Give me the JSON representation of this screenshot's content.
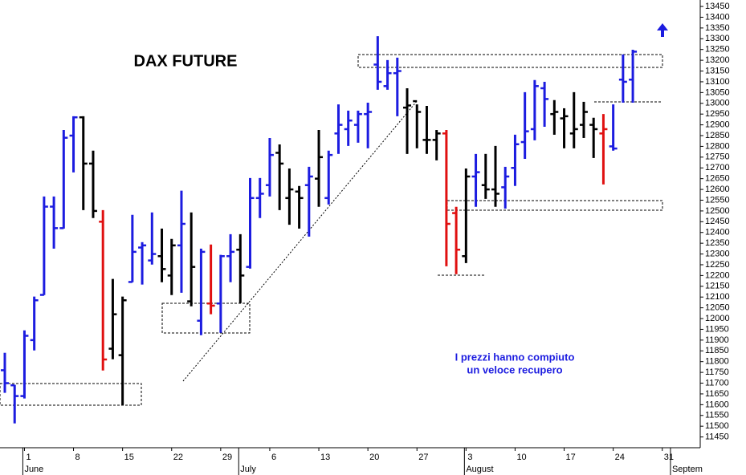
{
  "chart_data": {
    "type": "ohlc",
    "title": "DAX FUTURE",
    "annotation": [
      "I prezzi hanno compiuto",
      "un veloce recupero"
    ],
    "categories": [
      null,
      null,
      "1",
      null,
      null,
      null,
      null,
      "8",
      null,
      null,
      null,
      null,
      "15",
      null,
      null,
      null,
      null,
      "22",
      null,
      null,
      null,
      null,
      "29",
      null,
      null,
      null,
      null,
      "6",
      null,
      null,
      null,
      null,
      "13",
      null,
      null,
      null,
      null,
      "20",
      null,
      null,
      null,
      null,
      "27",
      null,
      null,
      null,
      null,
      "3",
      null,
      null,
      null,
      null,
      "10",
      null,
      null,
      null,
      null,
      "17",
      null,
      null,
      null,
      null,
      "24",
      null,
      null,
      null,
      null,
      "31",
      null,
      null,
      null
    ],
    "months": [
      "June",
      "July",
      "August",
      "Septem"
    ],
    "month_starts": [
      2,
      24,
      47,
      68
    ],
    "open": [
      11760,
      11690,
      11640,
      11900,
      12110,
      12520,
      12420,
      12850,
      12935,
      12720,
      12450,
      11860,
      11830,
      12170,
      12330,
      12270,
      12290,
      12200,
      12340,
      12080,
      11990,
      12070,
      12070,
      12290,
      12320,
      12240,
      12560,
      12620,
      12770,
      12560,
      12590,
      12620,
      12650,
      12560,
      12860,
      12880,
      12900,
      12950,
      13180,
      13080,
      13140,
      12980,
      13010,
      12830,
      12830,
      12860,
      12490,
      12290,
      12660,
      12620,
      12600,
      12610,
      12700,
      12820,
      12880,
      13070,
      12950,
      12930,
      12860,
      12900,
      12900,
      12860,
      12800,
      13110,
      13110,
      null,
      null,
      null,
      null,
      null,
      null
    ],
    "high": [
      11841,
      11692,
      11945,
      12102,
      12567,
      12567,
      12876,
      12940,
      12940,
      12780,
      12504,
      12184,
      12102,
      12482,
      12355,
      12493,
      12418,
      12370,
      12594,
      12493,
      12325,
      12344,
      12296,
      12392,
      12392,
      12653,
      12653,
      12839,
      12809,
      12697,
      12616,
      12705,
      12876,
      12780,
      12995,
      12966,
      12966,
      13003,
      13312,
      13201,
      13212,
      13070,
      12995,
      12988,
      12876,
      12876,
      12519,
      12697,
      12765,
      12765,
      12802,
      12705,
      12854,
      13052,
      13108,
      13100,
      13015,
      12977,
      13052,
      13007,
      12933,
      12950,
      12995,
      13227,
      13249,
      null,
      null,
      null,
      null,
      null,
      null
    ],
    "low": [
      11655,
      11513,
      11629,
      11852,
      12109,
      12325,
      12418,
      12679,
      12504,
      12467,
      11759,
      11811,
      11599,
      12169,
      12158,
      12251,
      12169,
      12109,
      12120,
      12057,
      11923,
      12020,
      11934,
      12169,
      12072,
      12232,
      12467,
      12567,
      12504,
      12436,
      12418,
      12381,
      12519,
      12530,
      12765,
      12802,
      12817,
      12791,
      13063,
      13063,
      12940,
      12765,
      12791,
      12765,
      12735,
      12243,
      12206,
      12258,
      12519,
      12556,
      12519,
      12511,
      12616,
      12742,
      12828,
      12891,
      12854,
      12791,
      12791,
      12839,
      12746,
      12623,
      12780,
      13003,
      13003,
      null,
      null,
      null,
      null,
      null,
      null
    ],
    "close": [
      11700,
      11640,
      11920,
      12085,
      12520,
      12420,
      12840,
      12935,
      12720,
      12500,
      11810,
      12020,
      12085,
      12310,
      12340,
      12300,
      12230,
      12340,
      12440,
      12240,
      12310,
      12060,
      12290,
      12310,
      12200,
      12560,
      12580,
      12760,
      12720,
      12600,
      12560,
      12660,
      12750,
      12760,
      12900,
      12920,
      12950,
      12960,
      13100,
      13140,
      13150,
      12990,
      12960,
      12830,
      12860,
      12440,
      12320,
      12660,
      12680,
      12600,
      12580,
      12660,
      12810,
      12870,
      13080,
      13020,
      12960,
      12940,
      12880,
      12960,
      12880,
      12880,
      12790,
      13100,
      13240,
      null,
      null,
      null,
      null,
      null,
      null
    ],
    "colors": [
      "#1c1ce0",
      "#1c1ce0",
      "#1c1ce0",
      "#1c1ce0",
      "#1c1ce0",
      "#1c1ce0",
      "#1c1ce0",
      "#1c1ce0",
      "#000000",
      "#000000",
      "#e01010",
      "#000000",
      "#000000",
      "#1c1ce0",
      "#1c1ce0",
      "#1c1ce0",
      "#000000",
      "#000000",
      "#1c1ce0",
      "#000000",
      "#1c1ce0",
      "#e01010",
      "#1c1ce0",
      "#1c1ce0",
      "#000000",
      "#1c1ce0",
      "#1c1ce0",
      "#1c1ce0",
      "#000000",
      "#000000",
      "#000000",
      "#1c1ce0",
      "#000000",
      "#1c1ce0",
      "#1c1ce0",
      "#1c1ce0",
      "#1c1ce0",
      "#1c1ce0",
      "#1c1ce0",
      "#1c1ce0",
      "#1c1ce0",
      "#000000",
      "#000000",
      "#000000",
      "#000000",
      "#e01010",
      "#e01010",
      "#000000",
      "#1c1ce0",
      "#000000",
      "#000000",
      "#1c1ce0",
      "#1c1ce0",
      "#1c1ce0",
      "#1c1ce0",
      "#1c1ce0",
      "#000000",
      "#000000",
      "#000000",
      "#000000",
      "#000000",
      "#e01010",
      "#1c1ce0",
      "#1c1ce0",
      "#1c1ce0",
      null,
      null,
      null,
      null,
      null,
      null
    ],
    "ylim": [
      11400,
      13480
    ],
    "yticks": [
      11450,
      11500,
      11550,
      11600,
      11650,
      11700,
      11750,
      11800,
      11850,
      11900,
      11950,
      12000,
      12050,
      12100,
      12150,
      12200,
      12250,
      12300,
      12350,
      12400,
      12450,
      12500,
      12550,
      12600,
      12650,
      12700,
      12750,
      12800,
      12850,
      12900,
      12950,
      13000,
      13050,
      13100,
      13150,
      13200,
      13250,
      13300,
      13350,
      13400,
      13450
    ],
    "axis_side": "right"
  }
}
